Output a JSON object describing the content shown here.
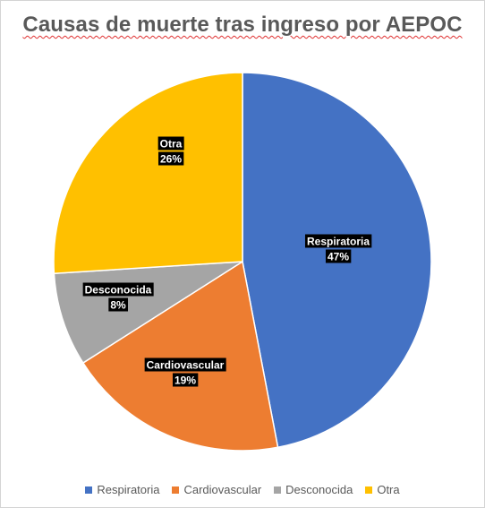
{
  "chart_data": {
    "type": "pie",
    "title": "Causas de muerte tras ingreso por AEPOC",
    "categories": [
      "Respiratoria",
      "Cardiovascular",
      "Desconocida",
      "Otra"
    ],
    "values": [
      47,
      19,
      8,
      26
    ],
    "data_labels": [
      {
        "name": "Respiratoria",
        "value": "47%"
      },
      {
        "name": "Cardiovascular",
        "value": "19%"
      },
      {
        "name": "Desconocida",
        "value": "8%"
      },
      {
        "name": "Otra",
        "value": "26%"
      }
    ],
    "colors": [
      "#4472c4",
      "#ed7d31",
      "#a5a5a5",
      "#ffc000"
    ],
    "start_angle_deg": 0,
    "direction": "clockwise",
    "legend_position": "bottom"
  }
}
